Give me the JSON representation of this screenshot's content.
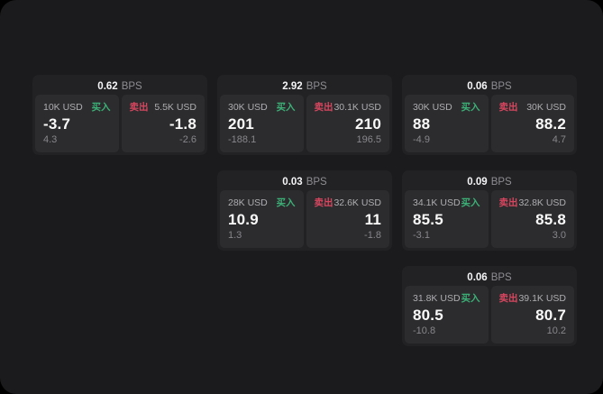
{
  "labels": {
    "buy_tag": "买入",
    "sell_tag": "卖出",
    "bps_unit": "BPS"
  },
  "colors": {
    "background": "#000000",
    "surface": "#1b1b1d",
    "card": "#222224",
    "side_panel": "#2c2c2e",
    "buy_green": "#3cb077",
    "sell_red": "#d7465f",
    "primary_text": "#fafafa",
    "muted_text": "#8e8e93"
  },
  "cards": [
    {
      "bps": "0.62",
      "buy": {
        "amount": "10K USD",
        "price": "-3.7",
        "delta": "4.3"
      },
      "sell": {
        "amount": "5.5K USD",
        "price": "-1.8",
        "delta": "-2.6"
      }
    },
    {
      "bps": "2.92",
      "buy": {
        "amount": "30K USD",
        "price": "201",
        "delta": "-188.1"
      },
      "sell": {
        "amount": "30.1K USD",
        "price": "210",
        "delta": "196.5"
      }
    },
    {
      "bps": "0.06",
      "buy": {
        "amount": "30K USD",
        "price": "88",
        "delta": "-4.9"
      },
      "sell": {
        "amount": "30K USD",
        "price": "88.2",
        "delta": "4.7"
      }
    },
    {
      "bps": "0.03",
      "buy": {
        "amount": "28K USD",
        "price": "10.9",
        "delta": "1.3"
      },
      "sell": {
        "amount": "32.6K USD",
        "price": "11",
        "delta": "-1.8"
      }
    },
    {
      "bps": "0.09",
      "buy": {
        "amount": "34.1K USD",
        "price": "85.5",
        "delta": "-3.1"
      },
      "sell": {
        "amount": "32.8K USD",
        "price": "85.8",
        "delta": "3.0"
      }
    },
    {
      "bps": "0.06",
      "buy": {
        "amount": "31.8K USD",
        "price": "80.5",
        "delta": "-10.8"
      },
      "sell": {
        "amount": "39.1K USD",
        "price": "80.7",
        "delta": "10.2"
      }
    }
  ]
}
